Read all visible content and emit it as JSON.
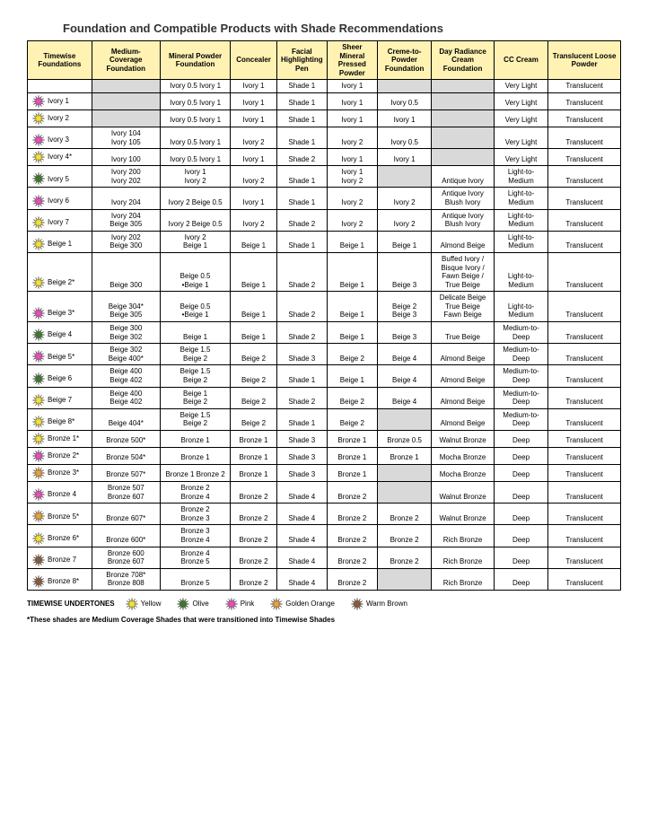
{
  "title": "Foundation and Compatible Products with Shade Recommendations",
  "colors": {
    "yellow": "#f2e23a",
    "olive": "#3b7a2b",
    "pink": "#e94fb8",
    "golden": "#e8a23b",
    "brown": "#8a5a3b",
    "header_bg": "#fff2b3",
    "gray_bg": "#d9d9d9"
  },
  "headers": [
    "Timewise Foundations",
    "Medium-Coverage Foundation",
    "Mineral Powder Foundation",
    "Concealer",
    "Facial Highlighting Pen",
    "Sheer Mineral Pressed Powder",
    "Creme-to-Powder Foundation",
    "Day Radiance Cream Foundation",
    "CC Cream",
    "Translucent Loose Powder"
  ],
  "rows": [
    {
      "u": null,
      "tw": "",
      "cells": [
        "",
        "Ivory 0.5 Ivory 1",
        "Ivory 1",
        "Shade 1",
        "Ivory 1",
        "",
        "",
        "Very Light",
        "Translucent"
      ],
      "g": [
        0,
        5,
        6
      ]
    },
    {
      "u": "pink",
      "tw": "Ivory 1",
      "cells": [
        "",
        "Ivory 0.5 Ivory 1",
        "Ivory 1",
        "Shade 1",
        "Ivory 1",
        "Ivory 0.5",
        "",
        "Very Light",
        "Translucent"
      ],
      "g": [
        0,
        6
      ]
    },
    {
      "u": "yellow",
      "tw": "Ivory 2",
      "cells": [
        "",
        "Ivory 0.5 Ivory 1",
        "Ivory 1",
        "Shade 1",
        "Ivory 1",
        "Ivory 1",
        "",
        "Very Light",
        "Translucent"
      ],
      "g": [
        0,
        6
      ]
    },
    {
      "u": "pink",
      "tw": "Ivory 3",
      "cells": [
        "Ivory 104\nIvory 105",
        "Ivory 0.5 Ivory 1",
        "Ivory 2",
        "Shade 1",
        "Ivory 2",
        "Ivory 0.5",
        "",
        "Very Light",
        "Translucent"
      ],
      "g": [
        6
      ]
    },
    {
      "u": "yellow",
      "tw": "Ivory 4*",
      "cells": [
        "Ivory 100",
        "Ivory 0.5 Ivory 1",
        "Ivory 1",
        "Shade 2",
        "Ivory 1",
        "Ivory 1",
        "",
        "Very Light",
        "Translucent"
      ],
      "g": [
        6
      ]
    },
    {
      "u": "olive",
      "tw": "Ivory 5",
      "cells": [
        "Ivory 200\nIvory 202",
        "Ivory 1\nIvory 2",
        "Ivory 2",
        "Shade 1",
        "Ivory 1\nIvory 2",
        "",
        "Antique Ivory",
        "Light-to-Medium",
        "Translucent"
      ],
      "g": [
        5
      ]
    },
    {
      "u": "pink",
      "tw": "Ivory 6",
      "cells": [
        "Ivory 204",
        "Ivory 2    Beige 0.5",
        "Ivory 1",
        "Shade 1",
        "Ivory 2",
        "Ivory 2",
        "Antique Ivory\nBlush Ivory",
        "Light-to-Medium",
        "Translucent"
      ],
      "g": []
    },
    {
      "u": "yellow",
      "tw": "Ivory 7",
      "cells": [
        "Ivory 204\nBeige 305",
        "Ivory 2    Beige 0.5",
        "Ivory 2",
        "Shade 2",
        "Ivory 2",
        "Ivory 2",
        "Antique Ivory\nBlush Ivory",
        "Light-to-Medium",
        "Translucent"
      ],
      "g": []
    },
    {
      "u": "yellow",
      "tw": "Beige 1",
      "cells": [
        "Ivory 202\nBeige 300",
        "Ivory 2\nBeige 1",
        "Beige 1",
        "Shade 1",
        "Beige 1",
        "Beige 1",
        "Almond Beige",
        "Light-to-Medium",
        "Translucent"
      ],
      "g": []
    },
    {
      "u": "yellow",
      "tw": "Beige 2*",
      "cells": [
        "Beige 300",
        "Beige 0.5\n•Beige 1",
        "Beige 1",
        "Shade 2",
        "Beige 1",
        "Beige 3",
        "Buffed Ivory / Bisque Ivory  / Fawn Beige / True Beige",
        "Light-to-Medium",
        "Translucent"
      ],
      "g": []
    },
    {
      "u": "pink",
      "tw": "Beige 3*",
      "cells": [
        "Beige 304*\nBeige 305",
        "Beige 0.5\n•Beige 1",
        "Beige 1",
        "Shade 2",
        "Beige 1",
        "Beige 2\nBeige 3",
        "Delicate Beige\nTrue Beige\nFawn Beige",
        "Light-to-Medium",
        "Translucent"
      ],
      "g": []
    },
    {
      "u": "olive",
      "tw": "Beige 4",
      "cells": [
        "Beige 300\nBeige 302",
        "Beige 1",
        "Beige 1",
        "Shade 2",
        "Beige 1",
        "Beige 3",
        "True Beige",
        "Medium-to-Deep",
        "Translucent"
      ],
      "g": []
    },
    {
      "u": "pink",
      "tw": "Beige 5*",
      "cells": [
        "Beige 302\nBeige 400*",
        "Beige 1.5\nBeige 2",
        "Beige 2",
        "Shade 3",
        "Beige 2",
        "Beige 4",
        "Almond Beige",
        "Medium-to-Deep",
        "Translucent"
      ],
      "g": []
    },
    {
      "u": "olive",
      "tw": "Beige 6",
      "cells": [
        "Beige 400\nBeige 402",
        "Beige 1.5\nBeige 2",
        "Beige 2",
        "Shade 1",
        "Beige 1",
        "Beige 4",
        "Almond Beige",
        "Medium-to-Deep",
        "Translucent"
      ],
      "g": []
    },
    {
      "u": "yellow",
      "tw": "Beige 7",
      "cells": [
        "Beige 400\nBeige 402",
        "Beige 1\nBeige 2",
        "Beige 2",
        "Shade 2",
        "Beige 2",
        "Beige 4",
        "Almond Beige",
        "Medium-to-Deep",
        "Translucent"
      ],
      "g": []
    },
    {
      "u": "yellow",
      "tw": "Beige 8*",
      "cells": [
        "Beige 404*",
        "Beige 1.5\nBeige 2",
        "Beige 2",
        "Shade 1",
        "Beige 2",
        "",
        "Almond Beige",
        "Medium-to-Deep",
        "Translucent"
      ],
      "g": [
        5
      ]
    },
    {
      "u": "yellow",
      "tw": "Bronze 1*",
      "cells": [
        "Bronze 500*",
        "Bronze 1",
        "Bronze 1",
        "Shade 3",
        "Bronze 1",
        "Bronze 0.5",
        "Walnut Bronze",
        "Deep",
        "Translucent"
      ],
      "g": []
    },
    {
      "u": "pink",
      "tw": "Bronze 2*",
      "cells": [
        "Bronze 504*",
        "Bronze 1",
        "Bronze 1",
        "Shade 3",
        "Bronze 1",
        "Bronze 1",
        "Mocha Bronze",
        "Deep",
        "Translucent"
      ],
      "g": []
    },
    {
      "u": "golden",
      "tw": "Bronze 3*",
      "cells": [
        "Bronze 507*",
        "Bronze 1 Bronze 2",
        "Bronze 1",
        "Shade 3",
        "Bronze 1",
        "",
        "Mocha Bronze",
        "Deep",
        "Translucent"
      ],
      "g": [
        5
      ]
    },
    {
      "u": "pink",
      "tw": "Bronze 4",
      "cells": [
        "Bronze 507\nBronze 607",
        "Bronze 2\nBronze 4",
        "Bronze 2",
        "Shade 4",
        "Bronze 2",
        "",
        "Walnut Bronze",
        "Deep",
        "Translucent"
      ],
      "g": [
        5
      ]
    },
    {
      "u": "golden",
      "tw": "Bronze 5*",
      "cells": [
        "Bronze 607*",
        "Bronze 2\nBronze 3",
        "Bronze 2",
        "Shade 4",
        "Bronze 2",
        "Bronze 2",
        "Walnut Bronze",
        "Deep",
        "Translucent"
      ],
      "g": []
    },
    {
      "u": "yellow",
      "tw": "Bronze 6*",
      "cells": [
        "Bronze 600*",
        "Bronze 3\nBronze 4",
        "Bronze 2",
        "Shade 4",
        "Bronze 2",
        "Bronze 2",
        "Rich Bronze",
        "Deep",
        "Translucent"
      ],
      "g": []
    },
    {
      "u": "brown",
      "tw": "Bronze 7",
      "cells": [
        "Bronze 600\nBronze 607",
        "Bronze 4\nBronze 5",
        "Bronze 2",
        "Shade 4",
        "Bronze 2",
        "Bronze 2",
        "Rich Bronze",
        "Deep",
        "Translucent"
      ],
      "g": []
    },
    {
      "u": "brown",
      "tw": "Bronze 8*",
      "cells": [
        "Bronze 708*\nBronze 808",
        "Bronze 5",
        "Bronze 2",
        "Shade 4",
        "Bronze 2",
        "",
        "Rich Bronze",
        "Deep",
        "Translucent"
      ],
      "g": [
        5
      ]
    }
  ],
  "legend": {
    "label": "TIMEWISE UNDERTONES",
    "items": [
      {
        "c": "yellow",
        "t": "Yellow"
      },
      {
        "c": "olive",
        "t": "Olive"
      },
      {
        "c": "pink",
        "t": "Pink"
      },
      {
        "c": "golden",
        "t": "Golden Orange"
      },
      {
        "c": "brown",
        "t": "Warm Brown"
      }
    ]
  },
  "footnote": "*These shades are Medium Coverage Shades that were transitioned into Timewise Shades"
}
